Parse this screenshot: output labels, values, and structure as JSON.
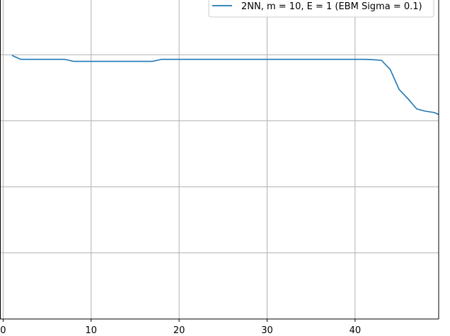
{
  "chart_data": {
    "type": "line",
    "title": "",
    "xlabel": "",
    "ylabel": "",
    "xlim": [
      -1,
      49.5
    ],
    "ylim": [
      0,
      1
    ],
    "xticks": [
      0,
      10,
      20,
      30,
      40
    ],
    "yticks": [
      0.0,
      0.2,
      0.4,
      0.6,
      0.8,
      1.0
    ],
    "grid": true,
    "legend": {
      "placement": "top-right"
    },
    "series": [
      {
        "name": "2NN, m = 10, E = 1 (EBM Sigma = 0.1)",
        "color": "#1f77b4",
        "x": [
          1,
          2,
          3,
          4,
          5,
          6,
          7,
          8,
          9,
          10,
          11,
          12,
          13,
          14,
          15,
          16,
          17,
          18,
          19,
          20,
          21,
          22,
          23,
          24,
          25,
          26,
          27,
          28,
          29,
          30,
          31,
          32,
          33,
          34,
          35,
          36,
          37,
          38,
          39,
          40,
          41,
          42,
          43,
          44,
          45,
          46,
          47,
          48,
          49,
          49.5
        ],
        "y": [
          0.798,
          0.786,
          0.786,
          0.786,
          0.786,
          0.786,
          0.786,
          0.78,
          0.78,
          0.78,
          0.78,
          0.78,
          0.78,
          0.78,
          0.78,
          0.78,
          0.78,
          0.786,
          0.786,
          0.786,
          0.786,
          0.786,
          0.786,
          0.786,
          0.786,
          0.786,
          0.786,
          0.786,
          0.786,
          0.786,
          0.786,
          0.786,
          0.786,
          0.786,
          0.786,
          0.786,
          0.786,
          0.786,
          0.786,
          0.786,
          0.786,
          0.785,
          0.783,
          0.755,
          0.695,
          0.667,
          0.636,
          0.629,
          0.625,
          0.619
        ]
      }
    ]
  }
}
